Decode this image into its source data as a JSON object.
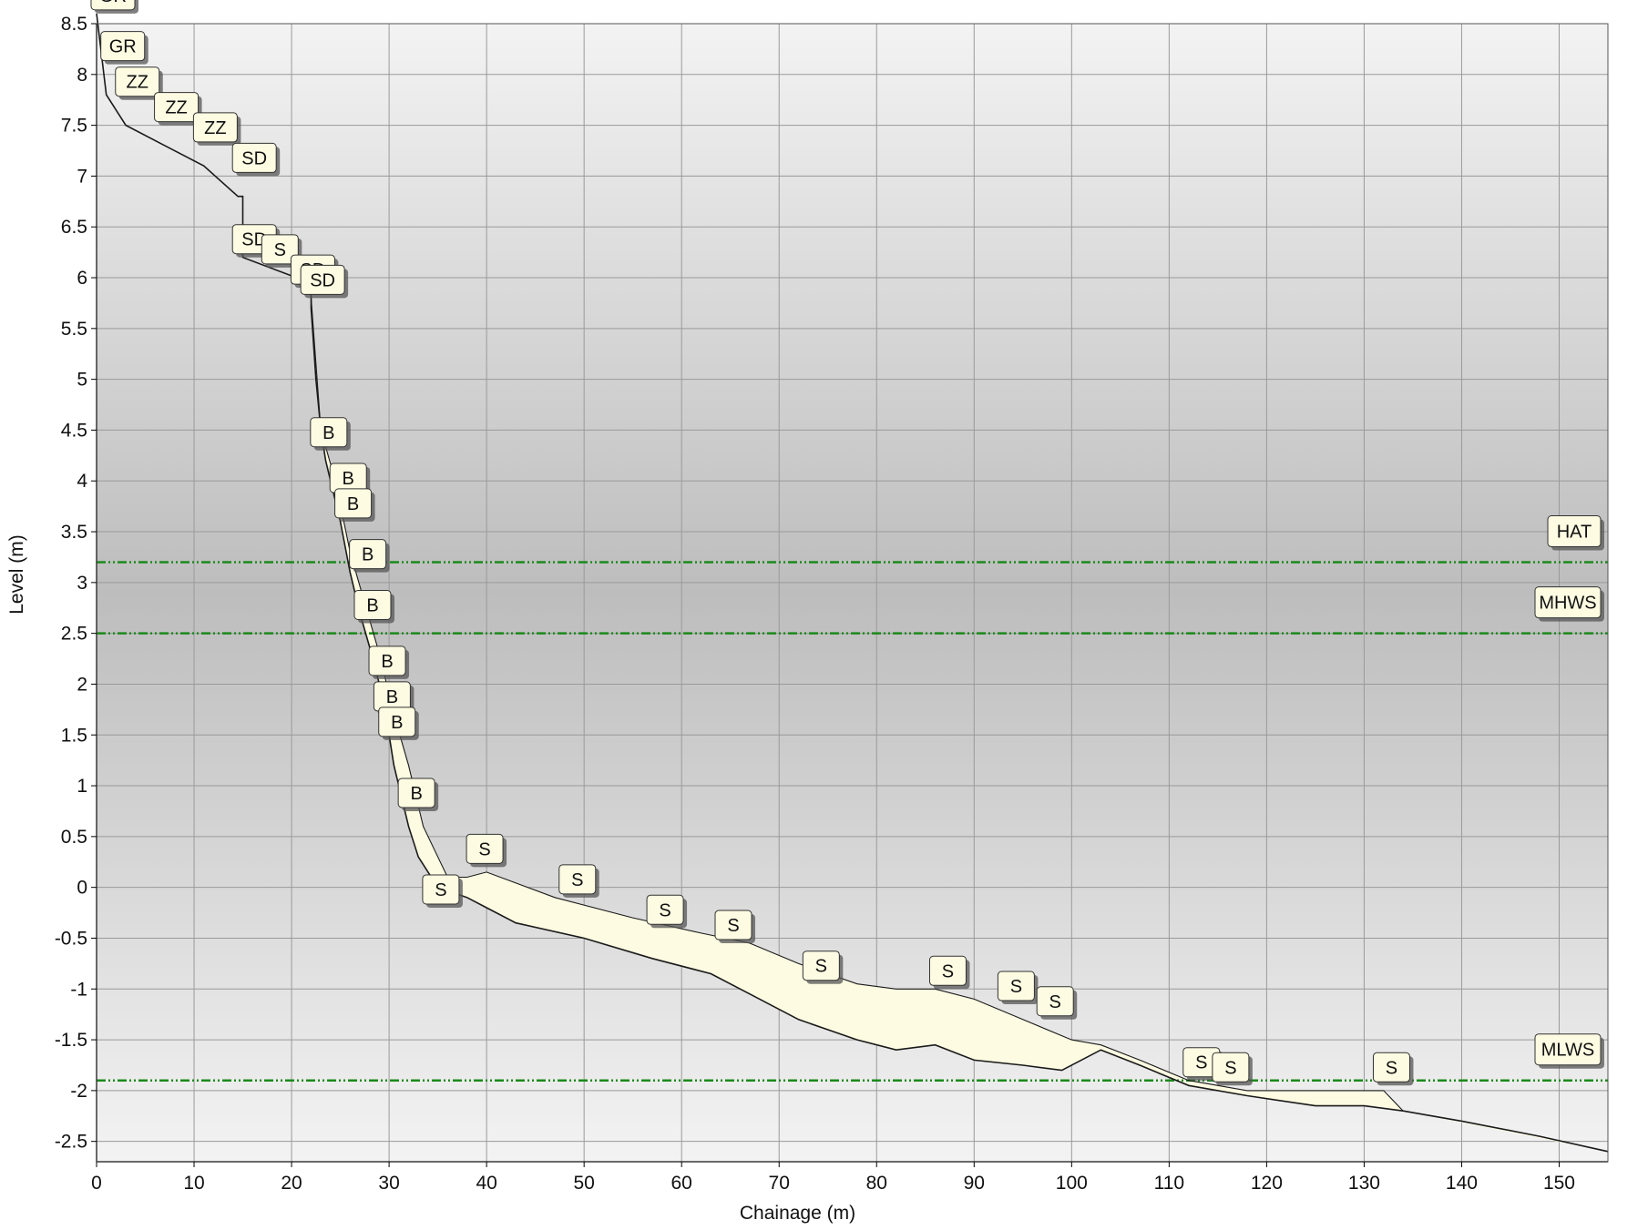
{
  "chart_data": {
    "type": "line",
    "xlabel": "Chainage (m)",
    "ylabel": "Level (m)",
    "xlim": [
      0,
      155
    ],
    "ylim": [
      -2.7,
      8.5
    ],
    "x_ticks": [
      "0",
      "10",
      "20",
      "30",
      "40",
      "50",
      "60",
      "70",
      "80",
      "90",
      "100",
      "110",
      "120",
      "130",
      "140",
      "150"
    ],
    "y_ticks": [
      "8.5",
      "8",
      "7.5",
      "7",
      "6.5",
      "6",
      "5.5",
      "5",
      "4.5",
      "4",
      "3.5",
      "3",
      "2.5",
      "2",
      "1.5",
      "1",
      "0.5",
      "0",
      "-0.5",
      "-1",
      "-1.5",
      "-2",
      "-2.5"
    ],
    "grid": true,
    "colors": {
      "fill": "#fdfbe2",
      "profile_line": "#1a1a1a",
      "reference_line": "#1b8a1b",
      "tag_fill": "#fdfbe2",
      "tag_shadow": "#555555"
    },
    "series": [
      {
        "x": [
          0,
          1,
          3,
          7,
          11,
          14.5,
          15,
          15,
          20.5,
          21,
          22,
          22,
          22.5,
          23,
          23.5,
          25,
          26,
          27,
          28.5,
          29.5,
          30,
          30.5,
          31,
          32,
          33,
          35,
          38,
          40,
          43,
          50,
          57,
          63,
          67,
          72,
          78,
          82,
          86,
          90,
          95,
          99,
          103,
          107,
          112,
          118,
          125,
          130,
          134,
          140,
          148,
          155
        ],
        "y": [
          8.6,
          7.8,
          7.5,
          7.3,
          7.1,
          6.8,
          6.8,
          6.2,
          6.0,
          6.0,
          6.0,
          5.7,
          5.0,
          4.5,
          4.2,
          3.6,
          3.1,
          2.7,
          2.2,
          1.8,
          1.5,
          1.2,
          1.0,
          0.6,
          0.3,
          0.0,
          -0.1,
          -0.2,
          -0.35,
          -0.5,
          -0.7,
          -0.85,
          -1.05,
          -1.3,
          -1.5,
          -1.6,
          -1.55,
          -1.7,
          -1.75,
          -1.8,
          -1.6,
          -1.75,
          -1.95,
          -2.05,
          -2.15,
          -2.15,
          -2.2,
          -2.3,
          -2.45,
          -2.6
        ]
      },
      {
        "x": [
          22,
          23,
          24.5,
          26,
          27.5,
          29,
          30.5,
          32,
          33.5,
          35,
          36,
          38,
          40,
          47,
          55,
          62,
          67,
          72,
          78,
          82,
          86,
          90,
          95,
          100,
          103,
          107,
          112,
          118,
          123,
          128,
          132,
          134
        ],
        "y": [
          5.8,
          4.5,
          4.0,
          3.3,
          2.8,
          2.3,
          1.7,
          1.2,
          0.6,
          0.3,
          0.1,
          0.1,
          0.15,
          -0.1,
          -0.3,
          -0.45,
          -0.55,
          -0.75,
          -0.95,
          -1.0,
          -1.0,
          -1.1,
          -1.3,
          -1.5,
          -1.55,
          -1.7,
          -1.9,
          -2.0,
          -2.0,
          -2.0,
          -2.0,
          -2.2
        ]
      }
    ],
    "reference_lines": [
      {
        "name": "HAT",
        "y": 3.2
      },
      {
        "name": "MHWS",
        "y": 2.5
      },
      {
        "name": "MLWS",
        "y": -1.9
      }
    ],
    "annotations": [
      {
        "text": "GR",
        "x": 0,
        "y": 8.6
      },
      {
        "text": "GR",
        "x": 1,
        "y": 8.1
      },
      {
        "text": "ZZ",
        "x": 2.5,
        "y": 7.75
      },
      {
        "text": "ZZ",
        "x": 6.5,
        "y": 7.5
      },
      {
        "text": "ZZ",
        "x": 10.5,
        "y": 7.3
      },
      {
        "text": "SD",
        "x": 14.5,
        "y": 7.0
      },
      {
        "text": "SD",
        "x": 14.5,
        "y": 6.2
      },
      {
        "text": "S",
        "x": 17.5,
        "y": 6.1
      },
      {
        "text": "SD",
        "x": 20.5,
        "y": 5.9
      },
      {
        "text": "SD",
        "x": 21.5,
        "y": 5.8
      },
      {
        "text": "B",
        "x": 22.5,
        "y": 4.3
      },
      {
        "text": "B",
        "x": 24.5,
        "y": 3.85
      },
      {
        "text": "B",
        "x": 25,
        "y": 3.6
      },
      {
        "text": "B",
        "x": 26.5,
        "y": 3.1
      },
      {
        "text": "B",
        "x": 27,
        "y": 2.6
      },
      {
        "text": "B",
        "x": 28.5,
        "y": 2.05
      },
      {
        "text": "B",
        "x": 29,
        "y": 1.7
      },
      {
        "text": "B",
        "x": 29.5,
        "y": 1.45
      },
      {
        "text": "B",
        "x": 31.5,
        "y": 0.75
      },
      {
        "text": "S",
        "x": 34,
        "y": -0.2
      },
      {
        "text": "S",
        "x": 38.5,
        "y": 0.2
      },
      {
        "text": "S",
        "x": 48,
        "y": -0.1
      },
      {
        "text": "S",
        "x": 57,
        "y": -0.4
      },
      {
        "text": "S",
        "x": 64,
        "y": -0.55
      },
      {
        "text": "S",
        "x": 73,
        "y": -0.95
      },
      {
        "text": "S",
        "x": 86,
        "y": -1.0
      },
      {
        "text": "S",
        "x": 93,
        "y": -1.15
      },
      {
        "text": "S",
        "x": 97,
        "y": -1.3
      },
      {
        "text": "S",
        "x": 112,
        "y": -1.9
      },
      {
        "text": "S",
        "x": 115,
        "y": -1.95
      },
      {
        "text": "S",
        "x": 131.5,
        "y": -1.95
      }
    ]
  }
}
